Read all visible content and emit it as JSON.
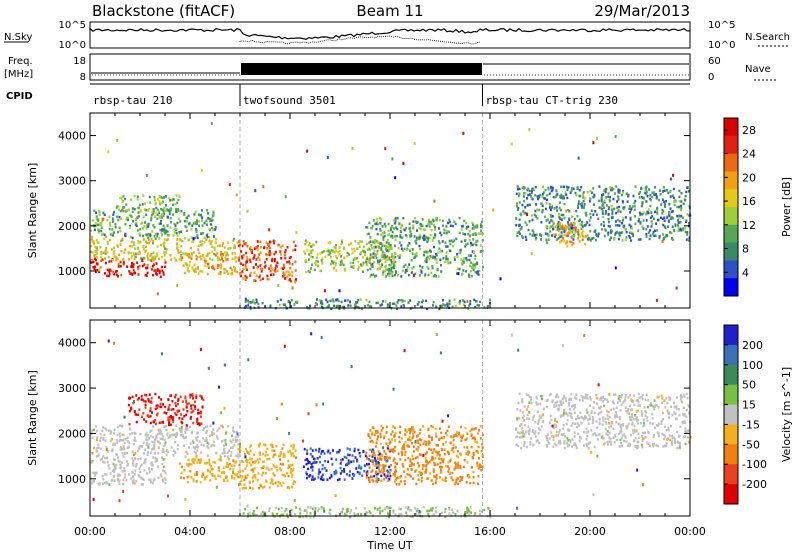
{
  "header": {
    "station": "Blackstone (fitACF)",
    "beam": "Beam 11",
    "date": "29/Mar/2013"
  },
  "noise_panel": {
    "left_label": "N.Sky",
    "left_ticks": [
      "10^5",
      "10^0"
    ],
    "right_label": "N.Search",
    "right_ticks": [
      "10^5",
      "10^0"
    ]
  },
  "freq_panel": {
    "left_label_1": "Freq.",
    "left_label_2": "[MHz]",
    "left_ticks": [
      "18",
      "8"
    ],
    "right_label": "Nave",
    "right_ticks": [
      "60",
      "0"
    ]
  },
  "cpid_panel": {
    "label": "CPID",
    "segments": [
      {
        "name": "rbsp-tau 210",
        "start_h": 0,
        "end_h": 6
      },
      {
        "name": "twofsound 3501",
        "start_h": 6,
        "end_h": 15.7
      },
      {
        "name": "rbsp-tau CT-trig 230",
        "start_h": 15.7,
        "end_h": 24
      }
    ]
  },
  "x_axis": {
    "label": "Time UT",
    "ticks": [
      "00:00",
      "04:00",
      "08:00",
      "12:00",
      "16:00",
      "20:00",
      "00:00"
    ],
    "range_h": [
      0,
      24
    ]
  },
  "chart_data": [
    {
      "type": "heatmap",
      "quantity": "Power",
      "ylabel": "Slant Range [km]",
      "yticks": [
        1000,
        2000,
        3000,
        4000
      ],
      "ylim": [
        180,
        4500
      ],
      "colorbar_label": "Power [dB]",
      "colorbar_ticks": [
        4,
        8,
        12,
        16,
        20,
        24,
        28
      ],
      "colorbar_range": [
        0,
        30
      ],
      "colors": [
        "#0000ee",
        "#3050c8",
        "#3a8a68",
        "#55a855",
        "#9ccf3a",
        "#e6c81a",
        "#f0a014",
        "#ec6a14",
        "#e02010",
        "#d80000"
      ],
      "echo_regions": [
        {
          "t0": 0.0,
          "t1": 3.0,
          "r0": 900,
          "r1": 1300,
          "level": 28
        },
        {
          "t0": 0.0,
          "t1": 5.9,
          "r0": 1250,
          "r1": 1750,
          "level": 16
        },
        {
          "t0": 0.0,
          "t1": 5.0,
          "r0": 1750,
          "r1": 2400,
          "level": 10
        },
        {
          "t0": 1.0,
          "t1": 3.6,
          "r0": 2200,
          "r1": 2700,
          "level": 12
        },
        {
          "t0": 5.9,
          "t1": 8.2,
          "r0": 800,
          "r1": 1700,
          "level": 24
        },
        {
          "t0": 3.5,
          "t1": 5.9,
          "r0": 950,
          "r1": 1400,
          "level": 18
        },
        {
          "t0": 8.5,
          "t1": 12.0,
          "r0": 1000,
          "r1": 1700,
          "level": 14
        },
        {
          "t0": 11.0,
          "t1": 15.7,
          "r0": 900,
          "r1": 2200,
          "level": 10
        },
        {
          "t0": 6.0,
          "t1": 16.0,
          "r0": 180,
          "r1": 400,
          "level": 8
        },
        {
          "t0": 17.0,
          "t1": 24.0,
          "r0": 1700,
          "r1": 2900,
          "level": 8
        },
        {
          "t0": 18.5,
          "t1": 19.8,
          "r0": 1600,
          "r1": 2100,
          "level": 18
        }
      ]
    },
    {
      "type": "heatmap",
      "quantity": "Velocity",
      "ylabel": "Slant Range [km]",
      "yticks": [
        1000,
        2000,
        3000,
        4000
      ],
      "ylim": [
        180,
        4500
      ],
      "colorbar_label": "Velocity [m s^-1]",
      "colorbar_ticks": [
        200,
        100,
        50,
        15,
        -15,
        -50,
        -100,
        -200
      ],
      "colorbar_range": [
        -250,
        250
      ],
      "colors": [
        "#2020c8",
        "#3a70b8",
        "#3c8a58",
        "#78c044",
        "#c0c0c0",
        "#f0b020",
        "#f08010",
        "#e84020",
        "#e00000"
      ],
      "echo_regions": [
        {
          "t0": 0.0,
          "t1": 3.0,
          "r0": 900,
          "r1": 1500,
          "level": 0
        },
        {
          "t0": 0.0,
          "t1": 5.9,
          "r0": 1500,
          "r1": 2200,
          "level": 0
        },
        {
          "t0": 1.5,
          "t1": 4.5,
          "r0": 2200,
          "r1": 2900,
          "level": -200
        },
        {
          "t0": 3.5,
          "t1": 5.9,
          "r0": 950,
          "r1": 1500,
          "level": -60
        },
        {
          "t0": 5.9,
          "t1": 8.2,
          "r0": 800,
          "r1": 1800,
          "level": -60
        },
        {
          "t0": 8.5,
          "t1": 12.0,
          "r0": 1000,
          "r1": 1700,
          "level": 200
        },
        {
          "t0": 11.0,
          "t1": 15.7,
          "r0": 900,
          "r1": 2200,
          "level": -100
        },
        {
          "t0": 6.0,
          "t1": 16.0,
          "r0": 180,
          "r1": 400,
          "level": 30
        },
        {
          "t0": 17.0,
          "t1": 24.0,
          "r0": 1700,
          "r1": 2900,
          "level": 0
        }
      ]
    }
  ]
}
